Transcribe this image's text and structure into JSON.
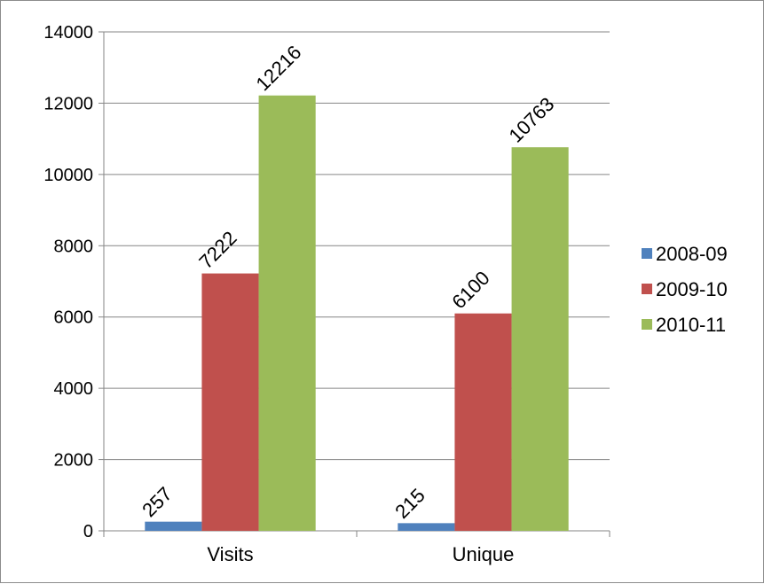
{
  "chart_data": {
    "type": "bar",
    "title": "",
    "xlabel": "",
    "ylabel": "",
    "categories": [
      "Visits",
      "Unique"
    ],
    "series": [
      {
        "name": "2008-09",
        "values": [
          257,
          215
        ],
        "color": "#4f81bd"
      },
      {
        "name": "2009-10",
        "values": [
          7222,
          6100
        ],
        "color": "#c0504d"
      },
      {
        "name": "2010-11",
        "values": [
          12216,
          10763
        ],
        "color": "#9bbb59"
      }
    ],
    "ylim": [
      0,
      14000
    ],
    "yticks": [
      "0",
      "2000",
      "4000",
      "6000",
      "8000",
      "10000",
      "12000",
      "14000"
    ],
    "grid": true,
    "legend_position": "right",
    "data_labels": [
      "257",
      "7222",
      "12216",
      "215",
      "6100",
      "10763"
    ]
  }
}
